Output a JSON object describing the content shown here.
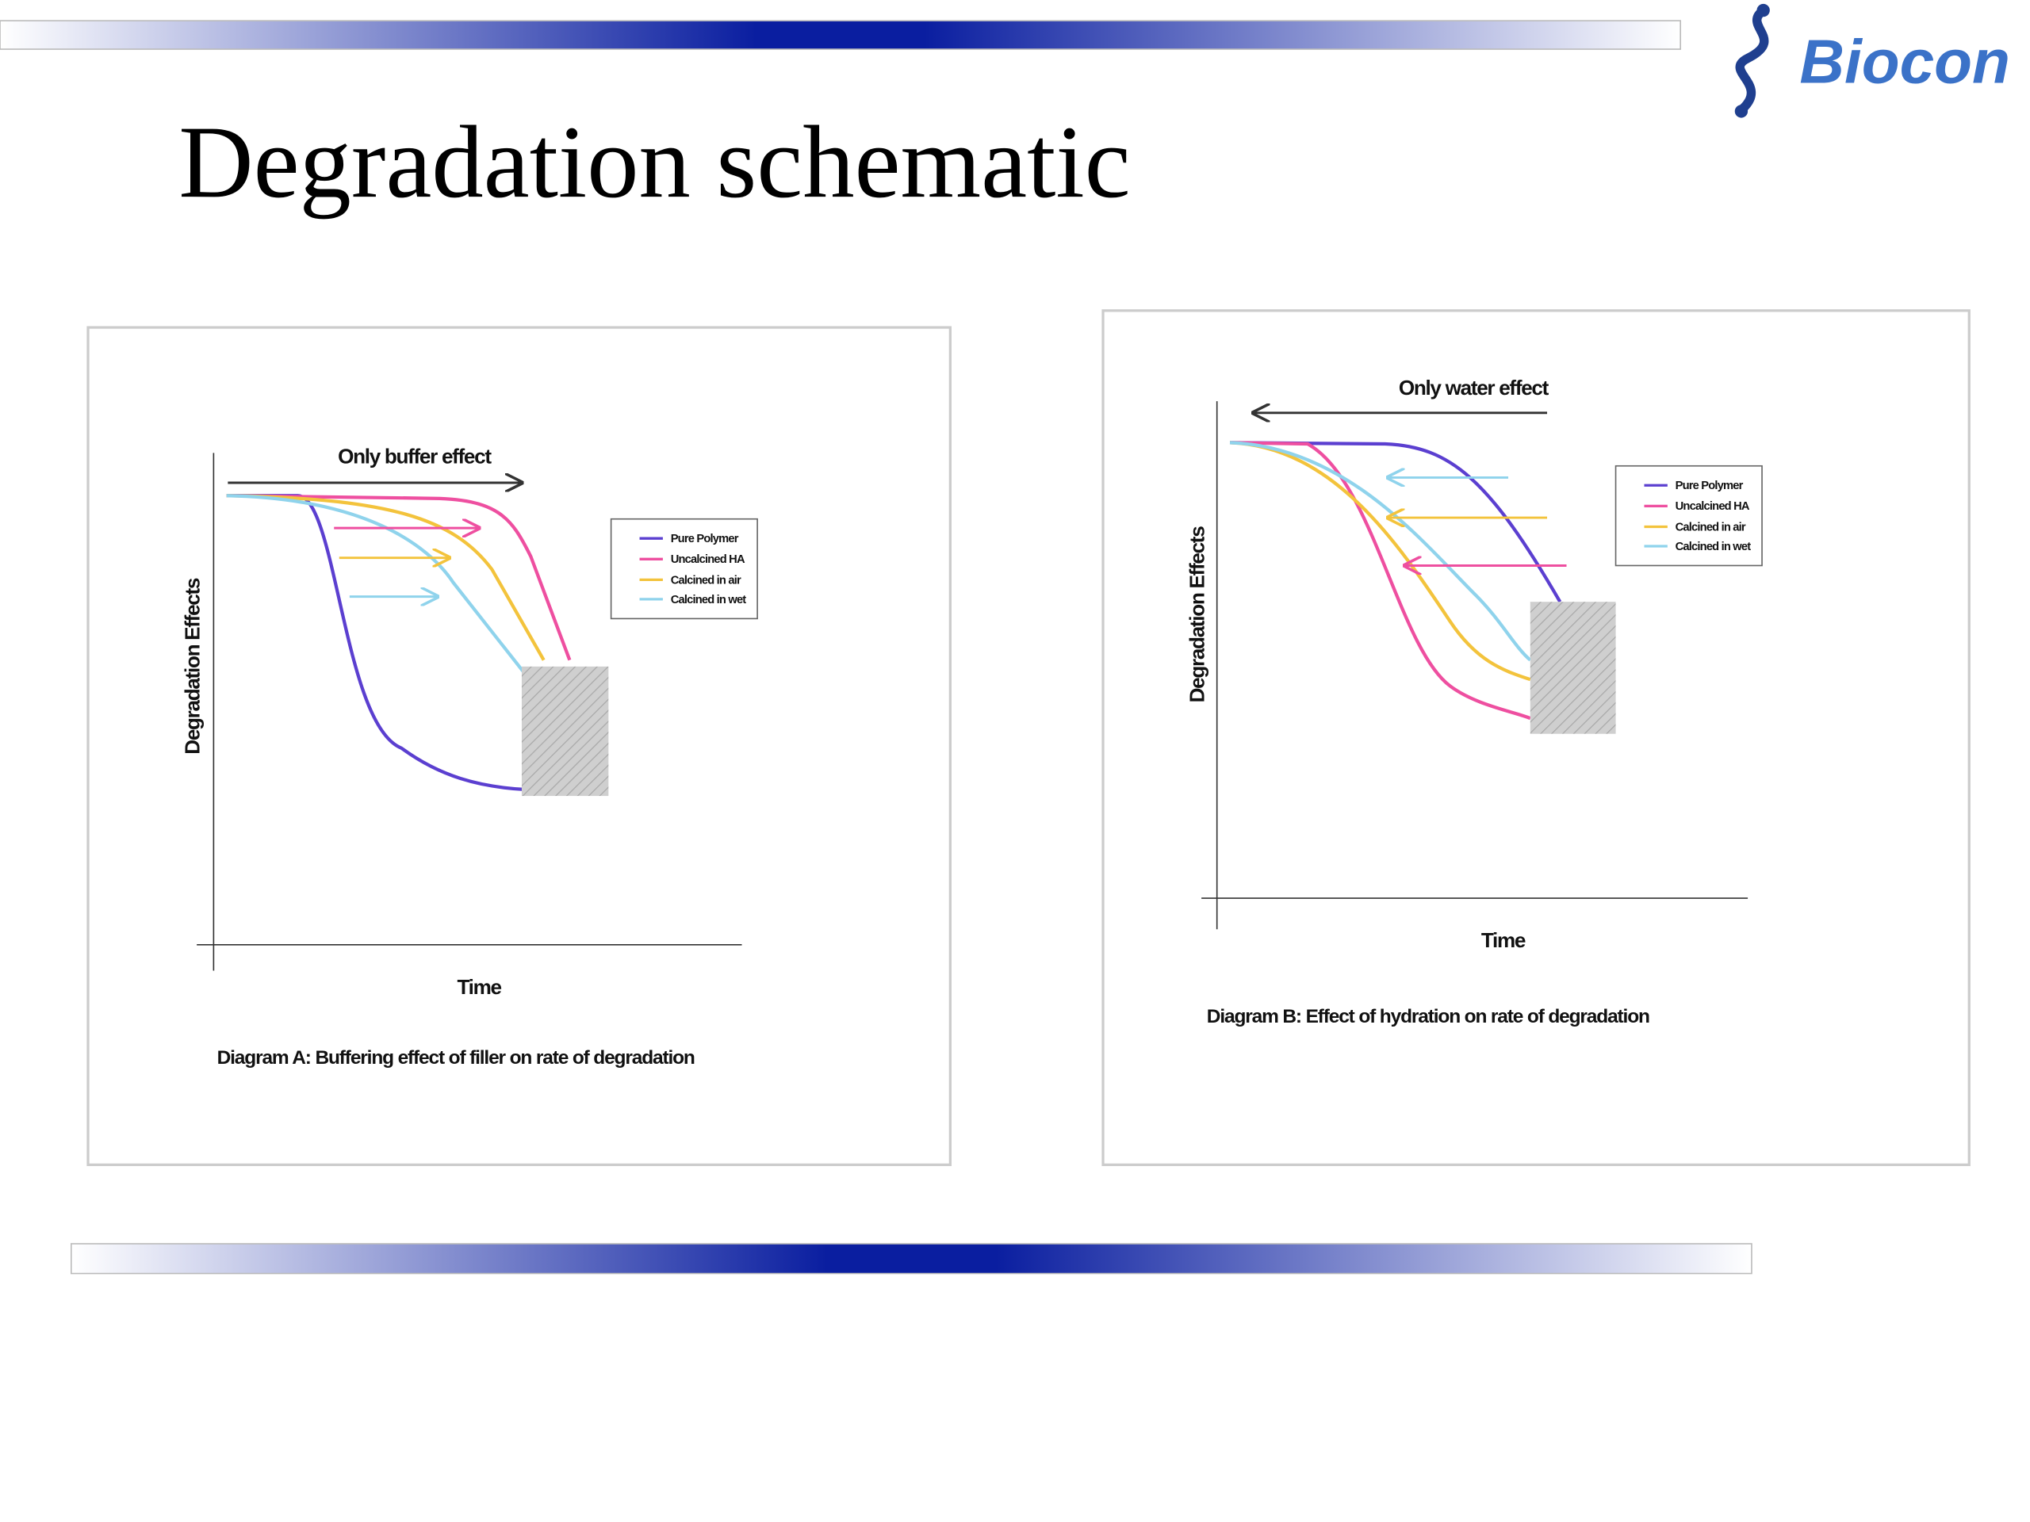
{
  "logo": "Biocon",
  "title": "Degradation schematic",
  "diagrams": [
    {
      "annotation": "Only buffer effect",
      "y_label": "Degradation Effects",
      "x_label": "Time",
      "legend": [
        "Pure Polymer",
        "Uncalcined HA",
        "Calcined in air",
        "Calcined in wet"
      ],
      "caption": "Diagram A: Buffering effect of filler on rate of degradation"
    },
    {
      "annotation": "Only water effect",
      "y_label": "Degradation Effects",
      "x_label": "Time",
      "legend": [
        "Pure Polymer",
        "Uncalcined HA",
        "Calcined in air",
        "Calcined in wet"
      ],
      "caption": "Diagram B: Effect of hydration on rate of degradation"
    }
  ]
}
